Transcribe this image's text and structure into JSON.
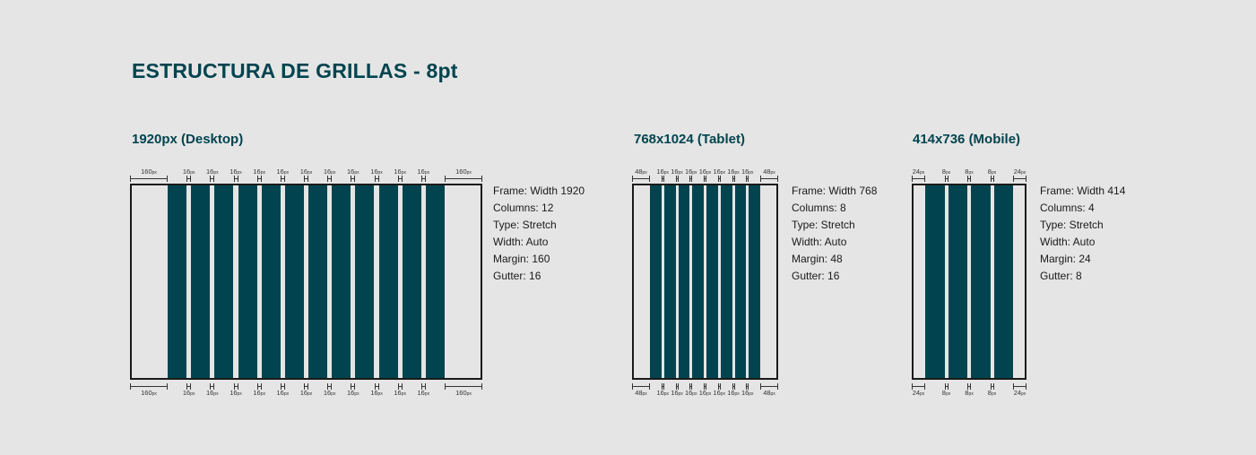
{
  "title": "ESTRUCTURA DE GRILLAS - 8pt",
  "colors": {
    "column": "#01444f",
    "heading": "#01444f",
    "frame_border": "#1a1a1a",
    "background": "#e5e5e5"
  },
  "sections": [
    {
      "id": "desktop",
      "heading": "1920px (Desktop)",
      "columns": 12,
      "margin_label": "160",
      "gutter_label": "16",
      "unit": "px",
      "specs": [
        "Frame:  Width 1920",
        "Columns: 12",
        "Type: Stretch",
        "Width: Auto",
        "Margin: 160",
        "Gutter: 16"
      ]
    },
    {
      "id": "tablet",
      "heading": "768x1024 (Tablet)",
      "columns": 8,
      "margin_label": "48",
      "gutter_label": "16",
      "unit": "px",
      "specs": [
        "Frame:  Width 768",
        "Columns: 8",
        "Type: Stretch",
        "Width: Auto",
        "Margin: 48",
        "Gutter: 16"
      ]
    },
    {
      "id": "mobile",
      "heading": "414x736 (Mobile)",
      "columns": 4,
      "margin_label": "24",
      "gutter_label": "8",
      "unit": "px",
      "specs": [
        "Frame:  Width 414",
        "Columns: 4",
        "Type: Stretch",
        "Width: Auto",
        "Margin: 24",
        "Gutter: 8"
      ]
    }
  ]
}
